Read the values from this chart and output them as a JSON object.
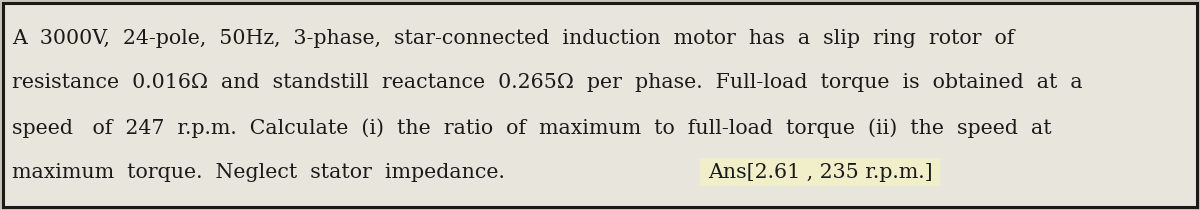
{
  "background_color": "#c8c4b8",
  "box_color": "#e8e5dc",
  "border_color": "#1a1a1a",
  "line1": "A  3000V,  24-pole,  50Hz,  3-phase,  star-connected  induction  motor  has  a  slip  ring  rotor  of",
  "line2": "resistance  0.016Ω  and  standstill  reactance  0.265Ω  per  phase.  Full-load  torque  is  obtained  at  a",
  "line3": "speed   of  247  r.p.m.  Calculate  (i)  the  ratio  of  maximum  to  full-load  torque  (ii)  the  speed  at",
  "line4_left": "maximum  torque.  Neglect  stator  impedance.",
  "line4_right": "Ans[2.61 , 235 r.p.m.]",
  "ans_bg_color": "#f0efca",
  "font_size": 14.8,
  "ans_font_size": 14.8,
  "text_color": "#1a1a1a",
  "font_family": "serif"
}
